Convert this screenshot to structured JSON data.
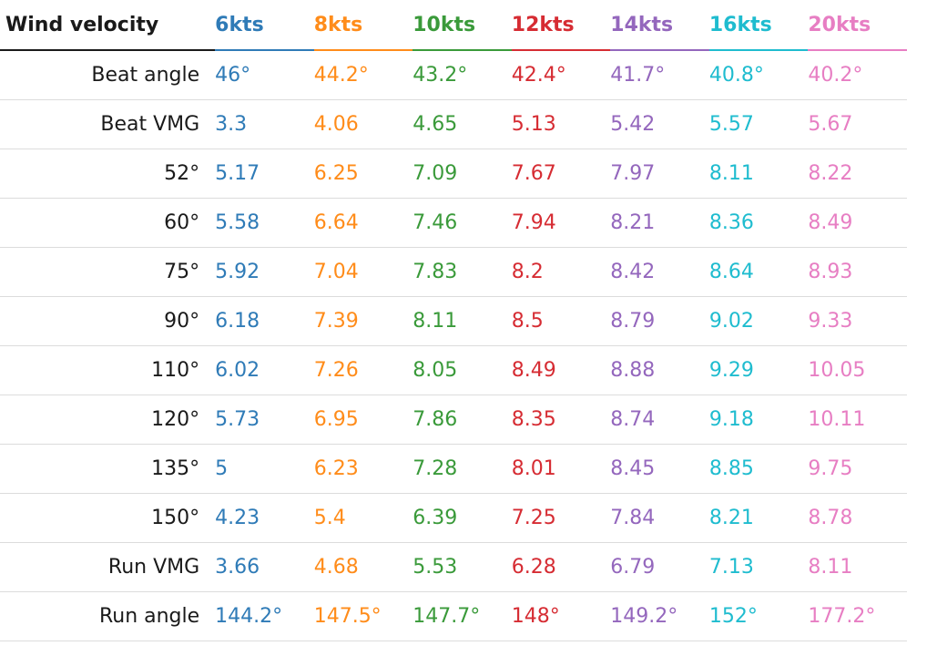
{
  "table": {
    "corner_label": "Wind velocity",
    "columns": [
      {
        "label": "6kts",
        "color": "#2f7bb7"
      },
      {
        "label": "8kts",
        "color": "#ff8c1a"
      },
      {
        "label": "10kts",
        "color": "#3a9a3a"
      },
      {
        "label": "12kts",
        "color": "#d62c33"
      },
      {
        "label": "14kts",
        "color": "#9467bd"
      },
      {
        "label": "16kts",
        "color": "#1fbccf"
      },
      {
        "label": "20kts",
        "color": "#e77ec3"
      }
    ],
    "rows": [
      {
        "label": "Beat angle",
        "values": [
          "46°",
          "44.2°",
          "43.2°",
          "42.4°",
          "41.7°",
          "40.8°",
          "40.2°"
        ]
      },
      {
        "label": "Beat VMG",
        "values": [
          "3.3",
          "4.06",
          "4.65",
          "5.13",
          "5.42",
          "5.57",
          "5.67"
        ]
      },
      {
        "label": "52°",
        "values": [
          "5.17",
          "6.25",
          "7.09",
          "7.67",
          "7.97",
          "8.11",
          "8.22"
        ]
      },
      {
        "label": "60°",
        "values": [
          "5.58",
          "6.64",
          "7.46",
          "7.94",
          "8.21",
          "8.36",
          "8.49"
        ]
      },
      {
        "label": "75°",
        "values": [
          "5.92",
          "7.04",
          "7.83",
          "8.2",
          "8.42",
          "8.64",
          "8.93"
        ]
      },
      {
        "label": "90°",
        "values": [
          "6.18",
          "7.39",
          "8.11",
          "8.5",
          "8.79",
          "9.02",
          "9.33"
        ]
      },
      {
        "label": "110°",
        "values": [
          "6.02",
          "7.26",
          "8.05",
          "8.49",
          "8.88",
          "9.29",
          "10.05"
        ]
      },
      {
        "label": "120°",
        "values": [
          "5.73",
          "6.95",
          "7.86",
          "8.35",
          "8.74",
          "9.18",
          "10.11"
        ]
      },
      {
        "label": "135°",
        "values": [
          "5",
          "6.23",
          "7.28",
          "8.01",
          "8.45",
          "8.85",
          "9.75"
        ]
      },
      {
        "label": "150°",
        "values": [
          "4.23",
          "5.4",
          "6.39",
          "7.25",
          "7.84",
          "8.21",
          "8.78"
        ]
      },
      {
        "label": "Run VMG",
        "values": [
          "3.66",
          "4.68",
          "5.53",
          "6.28",
          "6.79",
          "7.13",
          "8.11"
        ]
      },
      {
        "label": "Run angle",
        "values": [
          "144.2°",
          "147.5°",
          "147.7°",
          "148°",
          "149.2°",
          "152°",
          "177.2°"
        ]
      }
    ]
  }
}
